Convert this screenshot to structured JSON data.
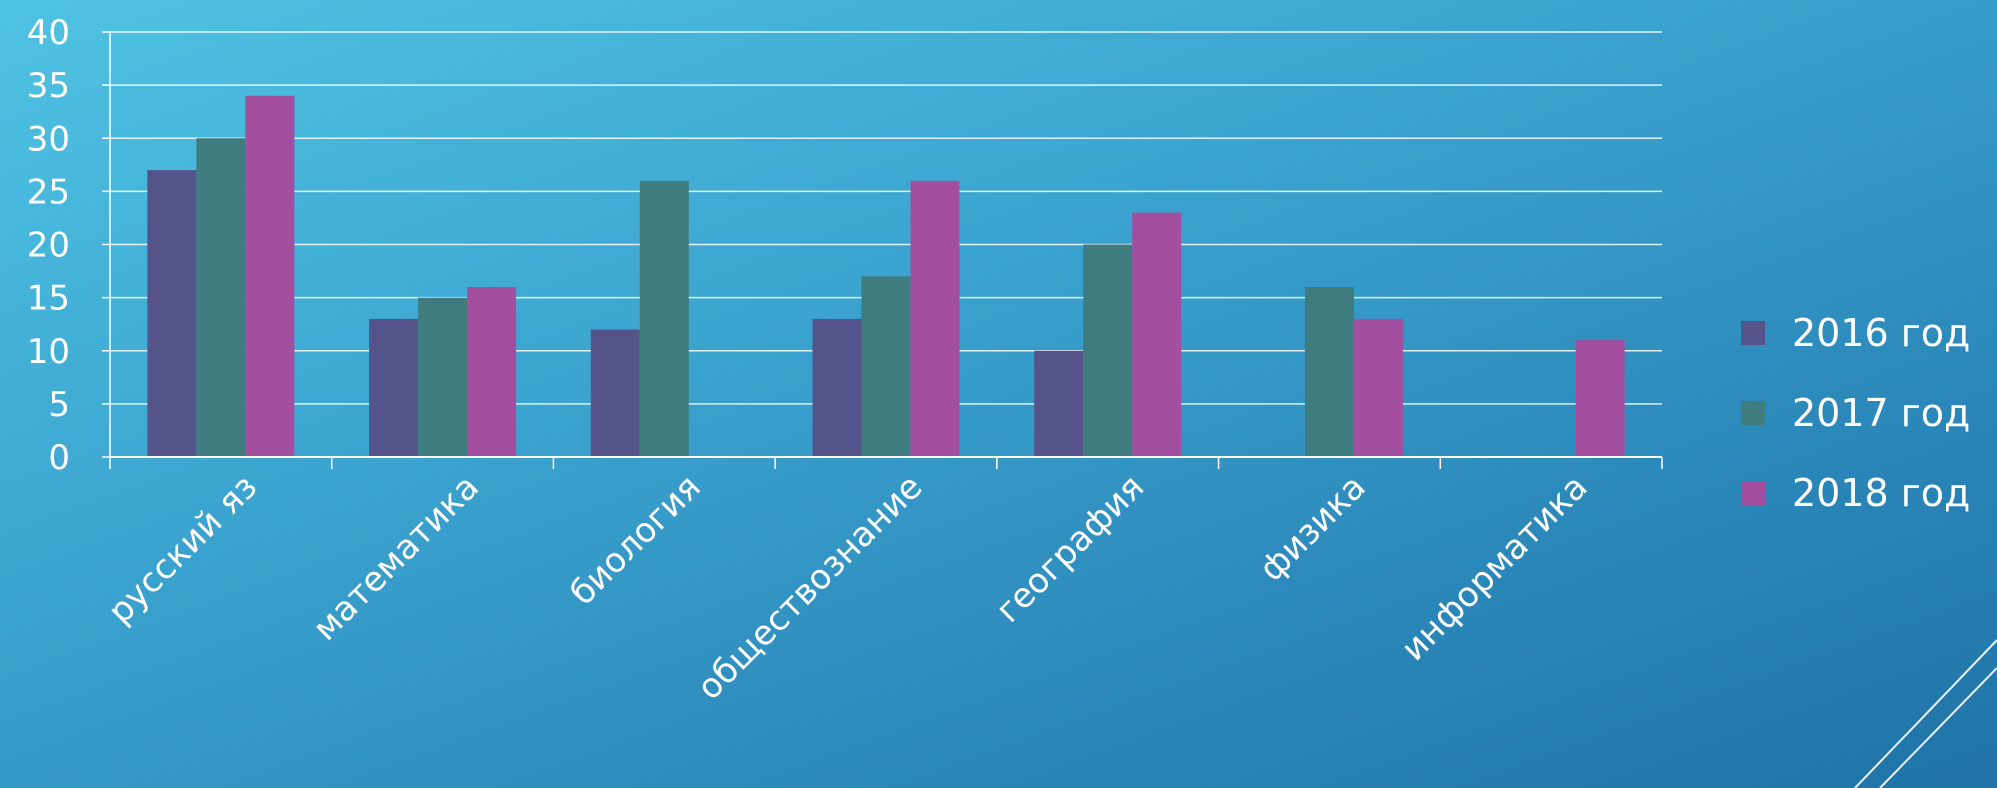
{
  "chart_data": {
    "type": "bar",
    "title": "",
    "xlabel": "",
    "ylabel": "",
    "categories": [
      "русский яз",
      "математика",
      "биология",
      "обществознание",
      "география",
      "физика",
      "информатика"
    ],
    "series": [
      {
        "name": "2016 год",
        "color": "#55548a",
        "values": [
          27,
          13,
          12,
          13,
          10,
          0,
          0
        ]
      },
      {
        "name": "2017 год",
        "color": "#3f7c80",
        "values": [
          30,
          15,
          26,
          17,
          20,
          16,
          0
        ]
      },
      {
        "name": "2018 год",
        "color": "#a24fa0",
        "values": [
          34,
          16,
          0,
          26,
          23,
          13,
          11
        ]
      }
    ],
    "ylim": [
      0,
      40
    ],
    "yticks": [
      0,
      5,
      10,
      15,
      20,
      25,
      30,
      35,
      40
    ],
    "grid": true,
    "legend_position": "right"
  },
  "colors": {
    "gridline": "#ffffff",
    "text": "#ffffff"
  }
}
